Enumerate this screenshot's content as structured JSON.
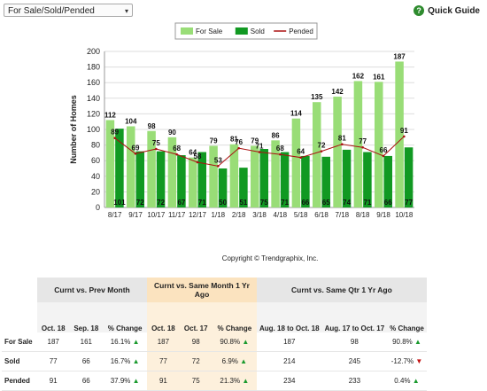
{
  "toolbar": {
    "select_value": "For Sale/Sold/Pended",
    "quick_guide_label": "Quick Guide"
  },
  "colors": {
    "for_sale": "#99dd77",
    "sold": "#119922",
    "pended": "#aa1111",
    "grid": "#dddddd"
  },
  "chart_data": {
    "type": "bar",
    "categories": [
      "8/17",
      "9/17",
      "10/17",
      "11/17",
      "12/17",
      "1/18",
      "2/18",
      "3/18",
      "4/18",
      "5/18",
      "6/18",
      "7/18",
      "8/18",
      "9/18",
      "10/18"
    ],
    "series": [
      {
        "name": "For Sale",
        "type": "bar",
        "values": [
          112,
          104,
          98,
          90,
          64,
          79,
          81,
          79,
          86,
          114,
          135,
          142,
          162,
          161,
          187
        ]
      },
      {
        "name": "Sold",
        "type": "bar",
        "values": [
          101,
          72,
          72,
          67,
          71,
          50,
          51,
          75,
          71,
          66,
          65,
          74,
          71,
          66,
          77
        ]
      },
      {
        "name": "Pended",
        "type": "line",
        "values": [
          89,
          69,
          75,
          68,
          58,
          53,
          76,
          71,
          68,
          64,
          72,
          81,
          77,
          66,
          91
        ]
      }
    ],
    "ylabel": "Number of Homes",
    "xlabel": "",
    "ylim": [
      0,
      200
    ],
    "yticks": [
      0,
      20,
      40,
      60,
      80,
      100,
      120,
      140,
      160,
      180,
      200
    ],
    "grid": true,
    "legend_position": "top"
  },
  "copyright": "Copyright © Trendgraphix, Inc.",
  "table": {
    "groups": [
      "Curnt vs. Prev Month",
      "Curnt vs. Same Month 1 Yr Ago",
      "Curnt vs. Same Qtr 1 Yr Ago"
    ],
    "subheaders": [
      "Oct. 18",
      "Sep. 18",
      "% Change",
      "Oct. 18",
      "Oct. 17",
      "% Change",
      "Aug. 18 to Oct. 18",
      "Aug. 17 to Oct. 17",
      "% Change"
    ],
    "rows": [
      {
        "label": "For Sale",
        "cells": [
          "187",
          "161",
          "16.1%",
          "187",
          "98",
          "90.8%",
          "187",
          "98",
          "90.8%"
        ],
        "dirs": [
          "up",
          "up",
          "up"
        ]
      },
      {
        "label": "Sold",
        "cells": [
          "77",
          "66",
          "16.7%",
          "77",
          "72",
          "6.9%",
          "214",
          "245",
          "-12.7%"
        ],
        "dirs": [
          "up",
          "up",
          "down"
        ]
      },
      {
        "label": "Pended",
        "cells": [
          "91",
          "66",
          "37.9%",
          "91",
          "75",
          "21.3%",
          "234",
          "233",
          "0.4%"
        ],
        "dirs": [
          "up",
          "up",
          "up"
        ]
      }
    ]
  }
}
